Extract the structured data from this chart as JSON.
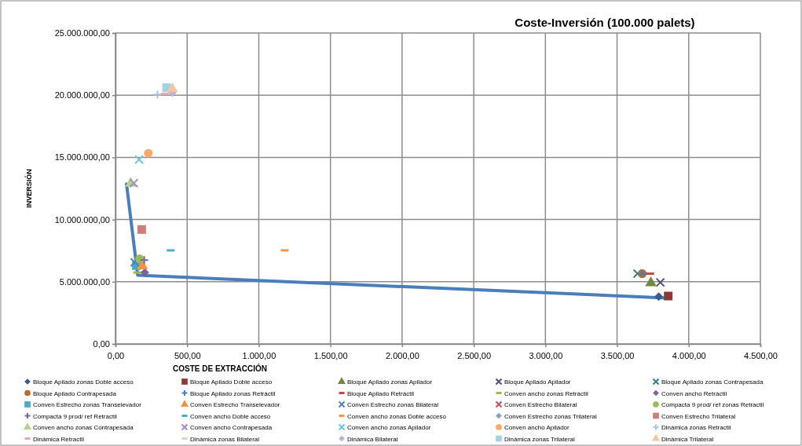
{
  "chart_data": {
    "type": "scatter",
    "title": "Coste-Inversión (100.000 palets)",
    "xlabel": "COSTE DE EXTRACCIÓN",
    "ylabel": "INVERSIÓN",
    "xlim": [
      0,
      4500
    ],
    "ylim": [
      0,
      25000000
    ],
    "xticks": [
      {
        "value": 0,
        "label": "0,00"
      },
      {
        "value": 500,
        "label": "500,00"
      },
      {
        "value": 1000,
        "label": "1.000,00"
      },
      {
        "value": 1500,
        "label": "1.500,00"
      },
      {
        "value": 2000,
        "label": "2.000,00"
      },
      {
        "value": 2500,
        "label": "2.500,00"
      },
      {
        "value": 3000,
        "label": "3.000,00"
      },
      {
        "value": 3500,
        "label": "3.500,00"
      },
      {
        "value": 4000,
        "label": "4.000,00"
      },
      {
        "value": 4500,
        "label": "4.500,00"
      }
    ],
    "yticks": [
      {
        "value": 0,
        "label": "0,00"
      },
      {
        "value": 5000000,
        "label": "5.000.000,00"
      },
      {
        "value": 10000000,
        "label": "10.000.000,00"
      },
      {
        "value": 15000000,
        "label": "15.000.000,00"
      },
      {
        "value": 20000000,
        "label": "20.000.000,00"
      },
      {
        "value": 25000000,
        "label": "25.000.000,00"
      }
    ],
    "grid": true,
    "legend": "bottom",
    "series": [
      {
        "type": "line",
        "color": "#4a7ebb",
        "marker": "none",
        "line_style": "solid",
        "x": [
          77,
          155,
          3840
        ],
        "values": [
          12870000,
          5520000,
          3700000
        ]
      },
      {
        "name": "Bloque Apilado zonas Doble acceso",
        "color": "#385d8a",
        "marker": "diamond",
        "x": [
          3791
        ],
        "values": [
          3800000
        ]
      },
      {
        "name": "Bloque Apilado  Doble acceso",
        "color": "#8c3836",
        "marker": "square",
        "x": [
          3857
        ],
        "values": [
          3850000
        ]
      },
      {
        "name": "Bloque Apilado zonas Apilador",
        "color": "#71893f",
        "marker": "triangle",
        "x": [
          3736
        ],
        "values": [
          4900000
        ]
      },
      {
        "name": "Bloque Apilado Apilador",
        "color": "#5c4776",
        "marker": "cross",
        "x": [
          3802
        ],
        "values": [
          4950000
        ]
      },
      {
        "name": "Bloque Apilado zonas Contrapesada",
        "color": "#357d91",
        "marker": "cross",
        "x": [
          3643
        ],
        "values": [
          5650000
        ]
      },
      {
        "name": "Bloque Apilado  Contrapesada",
        "color": "#b66d31",
        "marker": "circle",
        "x": [
          3676
        ],
        "values": [
          5650000
        ]
      },
      {
        "name": "Bloque Apilado zonas Retráctil",
        "color": "#4a7ebb",
        "marker": "plus",
        "x": [
          3680
        ],
        "values": [
          5650000
        ]
      },
      {
        "name": "Bloque Apilado  Retráctil",
        "color": "#be4b48",
        "x": [
          3731
        ],
        "values": [
          5650000
        ]
      },
      {
        "name": "Conven ancho zonas Retráctil",
        "color": "#98b954",
        "x": [
          152
        ],
        "values": [
          5740000
        ]
      },
      {
        "name": "Conven ancho  Retráctil",
        "color": "#7d60a0",
        "marker": "diamond",
        "x": [
          205
        ],
        "values": [
          5740000
        ]
      },
      {
        "name": "Conven Estrecho zonas Transelevador",
        "color": "#46aac5",
        "marker": "square",
        "x": [
          146
        ],
        "values": [
          6300000
        ]
      },
      {
        "name": "Conven Estrecho Transelevador",
        "color": "#f69240",
        "marker": "triangle",
        "x": [
          187
        ],
        "values": [
          6260000
        ]
      },
      {
        "name": "Conven Estrecho zonas Bilateral",
        "color": "#4f81bd",
        "marker": "cross",
        "x": [
          134
        ],
        "values": [
          6570000
        ]
      },
      {
        "name": "Conven Estrecho Bilateral",
        "color": "#c0504d",
        "marker": "cross",
        "x": [
          null
        ],
        "values": [
          null
        ]
      },
      {
        "name": "Compacta 9 prod/ ref zonas Retractil",
        "color": "#9bbb59",
        "marker": "circle",
        "x": [
          168
        ],
        "values": [
          6850000
        ]
      },
      {
        "name": "Compacta 9 prod/ ref Retractil",
        "color": "#8064a2",
        "marker": "plus",
        "x": [
          201
        ],
        "values": [
          6740000
        ]
      },
      {
        "name": "Conven ancho Doble acceso",
        "color": "#4bacc6",
        "x": [
          385
        ],
        "values": [
          7520000
        ]
      },
      {
        "name": "Conven ancho zonas Doble acceso",
        "color": "#f79646",
        "x": [
          1180
        ],
        "values": [
          7520000
        ]
      },
      {
        "name": "Conven Estrecho zonas Trilateral",
        "color": "#7f9fcf",
        "marker": "diamond",
        "x": [
          null
        ],
        "values": [
          null
        ]
      },
      {
        "name": "Conven Estrecho Trilateral",
        "color": "#d07c7a",
        "marker": "square",
        "x": [
          183
        ],
        "values": [
          9200000
        ]
      },
      {
        "name": "Conven ancho zonas Contrapesada",
        "color": "#b7d28d",
        "marker": "triangle",
        "x": [
          106
        ],
        "values": [
          12900000
        ]
      },
      {
        "name": "Conven ancho Contrapesada",
        "color": "#a18fc0",
        "marker": "cross",
        "x": [
          128
        ],
        "values": [
          12930000
        ]
      },
      {
        "name": "Conven ancho zonas Apilador",
        "color": "#6fc5d9",
        "marker": "cross",
        "x": [
          165
        ],
        "values": [
          14820000
        ]
      },
      {
        "name": "Conven ancho Apilador",
        "color": "#f9a96f",
        "marker": "circle",
        "x": [
          229
        ],
        "values": [
          15330000
        ]
      },
      {
        "name": "Dinámica zonas Retractil",
        "color": "#a9c1e6",
        "marker": "plus",
        "x": [
          293
        ],
        "values": [
          20050000
        ]
      },
      {
        "name": "Dinámica Retractil",
        "color": "#e9a9a8",
        "x": [
          344
        ],
        "values": [
          20100000
        ]
      },
      {
        "name": "Dinámica zonas Bilateral",
        "color": "#cde0b0",
        "x": [
          null
        ],
        "values": [
          null
        ]
      },
      {
        "name": "Dinámica Bilateral",
        "color": "#beb1d6",
        "marker": "diamond",
        "x": [
          397
        ],
        "values": [
          20200000
        ]
      },
      {
        "name": "Dinámica zonas Trilateral",
        "color": "#9fd3e1",
        "marker": "square",
        "x": [
          357
        ],
        "values": [
          20600000
        ]
      },
      {
        "name": "Dinámica Trilateral",
        "color": "#fbc39f",
        "marker": "triangle",
        "x": [
          397
        ],
        "values": [
          20500000
        ]
      }
    ]
  }
}
